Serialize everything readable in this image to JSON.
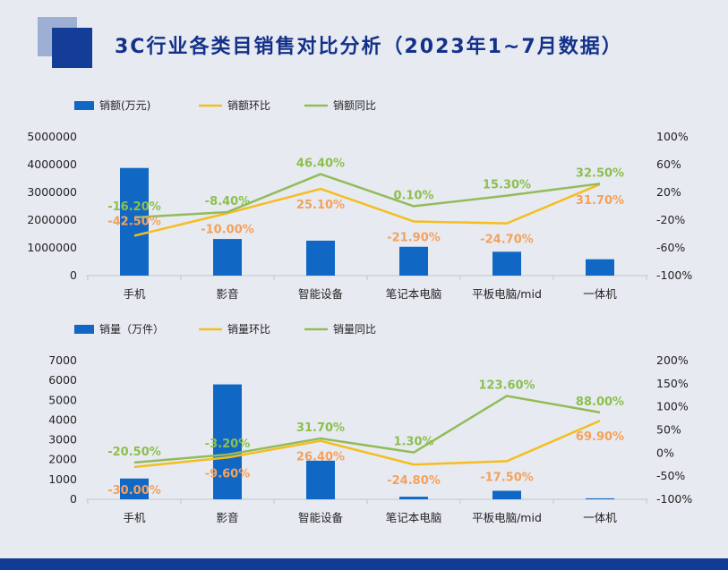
{
  "title": "3C行业各类目销售对比分析（2023年1~7月数据）",
  "colors": {
    "bar": "#1168c4",
    "mom": "#f5bd1f",
    "yoy": "#93bb59",
    "mom_label": "#f4a15d",
    "yoy_label": "#8cbf4e"
  },
  "chart_data": [
    {
      "type": "bar",
      "categories": [
        "手机",
        "影音",
        "智能设备",
        "笔记本电脑",
        "平板电脑/mid",
        "一体机"
      ],
      "series": [
        {
          "name": "销额(万元)",
          "kind": "bar",
          "axis": "left",
          "values": [
            3880000,
            1320000,
            1260000,
            1040000,
            860000,
            590000
          ]
        },
        {
          "name": "销额环比",
          "kind": "line",
          "axis": "right",
          "values": [
            -42.5,
            -10.0,
            25.1,
            -21.9,
            -24.7,
            31.7
          ],
          "labels": [
            "-42.50%",
            "-10.00%",
            "25.10%",
            "-21.90%",
            "-24.70%",
            "31.70%"
          ]
        },
        {
          "name": "销额同比",
          "kind": "line",
          "axis": "right",
          "values": [
            -16.2,
            -8.4,
            46.4,
            0.1,
            15.3,
            32.5
          ],
          "labels": [
            "-16.20%",
            "-8.40%",
            "46.40%",
            "0.10%",
            "15.30%",
            "32.50%"
          ]
        }
      ],
      "left_ylim": [
        0,
        5000000
      ],
      "left_ticks": [
        "0",
        "1000000",
        "2000000",
        "3000000",
        "4000000",
        "5000000"
      ],
      "right_ylim": [
        -100,
        100
      ],
      "right_ticks": [
        "-100%",
        "-60%",
        "-20%",
        "20%",
        "60%",
        "100%"
      ]
    },
    {
      "type": "bar",
      "categories": [
        "手机",
        "影音",
        "智能设备",
        "笔记本电脑",
        "平板电脑/mid",
        "一体机"
      ],
      "series": [
        {
          "name": "销量（万件）",
          "kind": "bar",
          "axis": "left",
          "values": [
            1050,
            5800,
            1950,
            130,
            430,
            50
          ]
        },
        {
          "name": "销量环比",
          "kind": "line",
          "axis": "right",
          "values": [
            -30.0,
            -9.6,
            26.4,
            -24.8,
            -17.5,
            69.9
          ],
          "labels": [
            "-30.00%",
            "-9.60%",
            "26.40%",
            "-24.80%",
            "-17.50%",
            "69.90%"
          ]
        },
        {
          "name": "销量同比",
          "kind": "line",
          "axis": "right",
          "values": [
            -20.5,
            -3.2,
            31.7,
            1.3,
            123.6,
            88.0
          ],
          "labels": [
            "-20.50%",
            "-3.20%",
            "31.70%",
            "1.30%",
            "123.60%",
            "88.00%"
          ]
        }
      ],
      "left_ylim": [
        0,
        7000
      ],
      "left_ticks": [
        "0",
        "1000",
        "2000",
        "3000",
        "4000",
        "5000",
        "6000",
        "7000"
      ],
      "right_ylim": [
        -100,
        200
      ],
      "right_ticks": [
        "-100%",
        "-50%",
        "0%",
        "50%",
        "100%",
        "150%",
        "200%"
      ]
    }
  ]
}
